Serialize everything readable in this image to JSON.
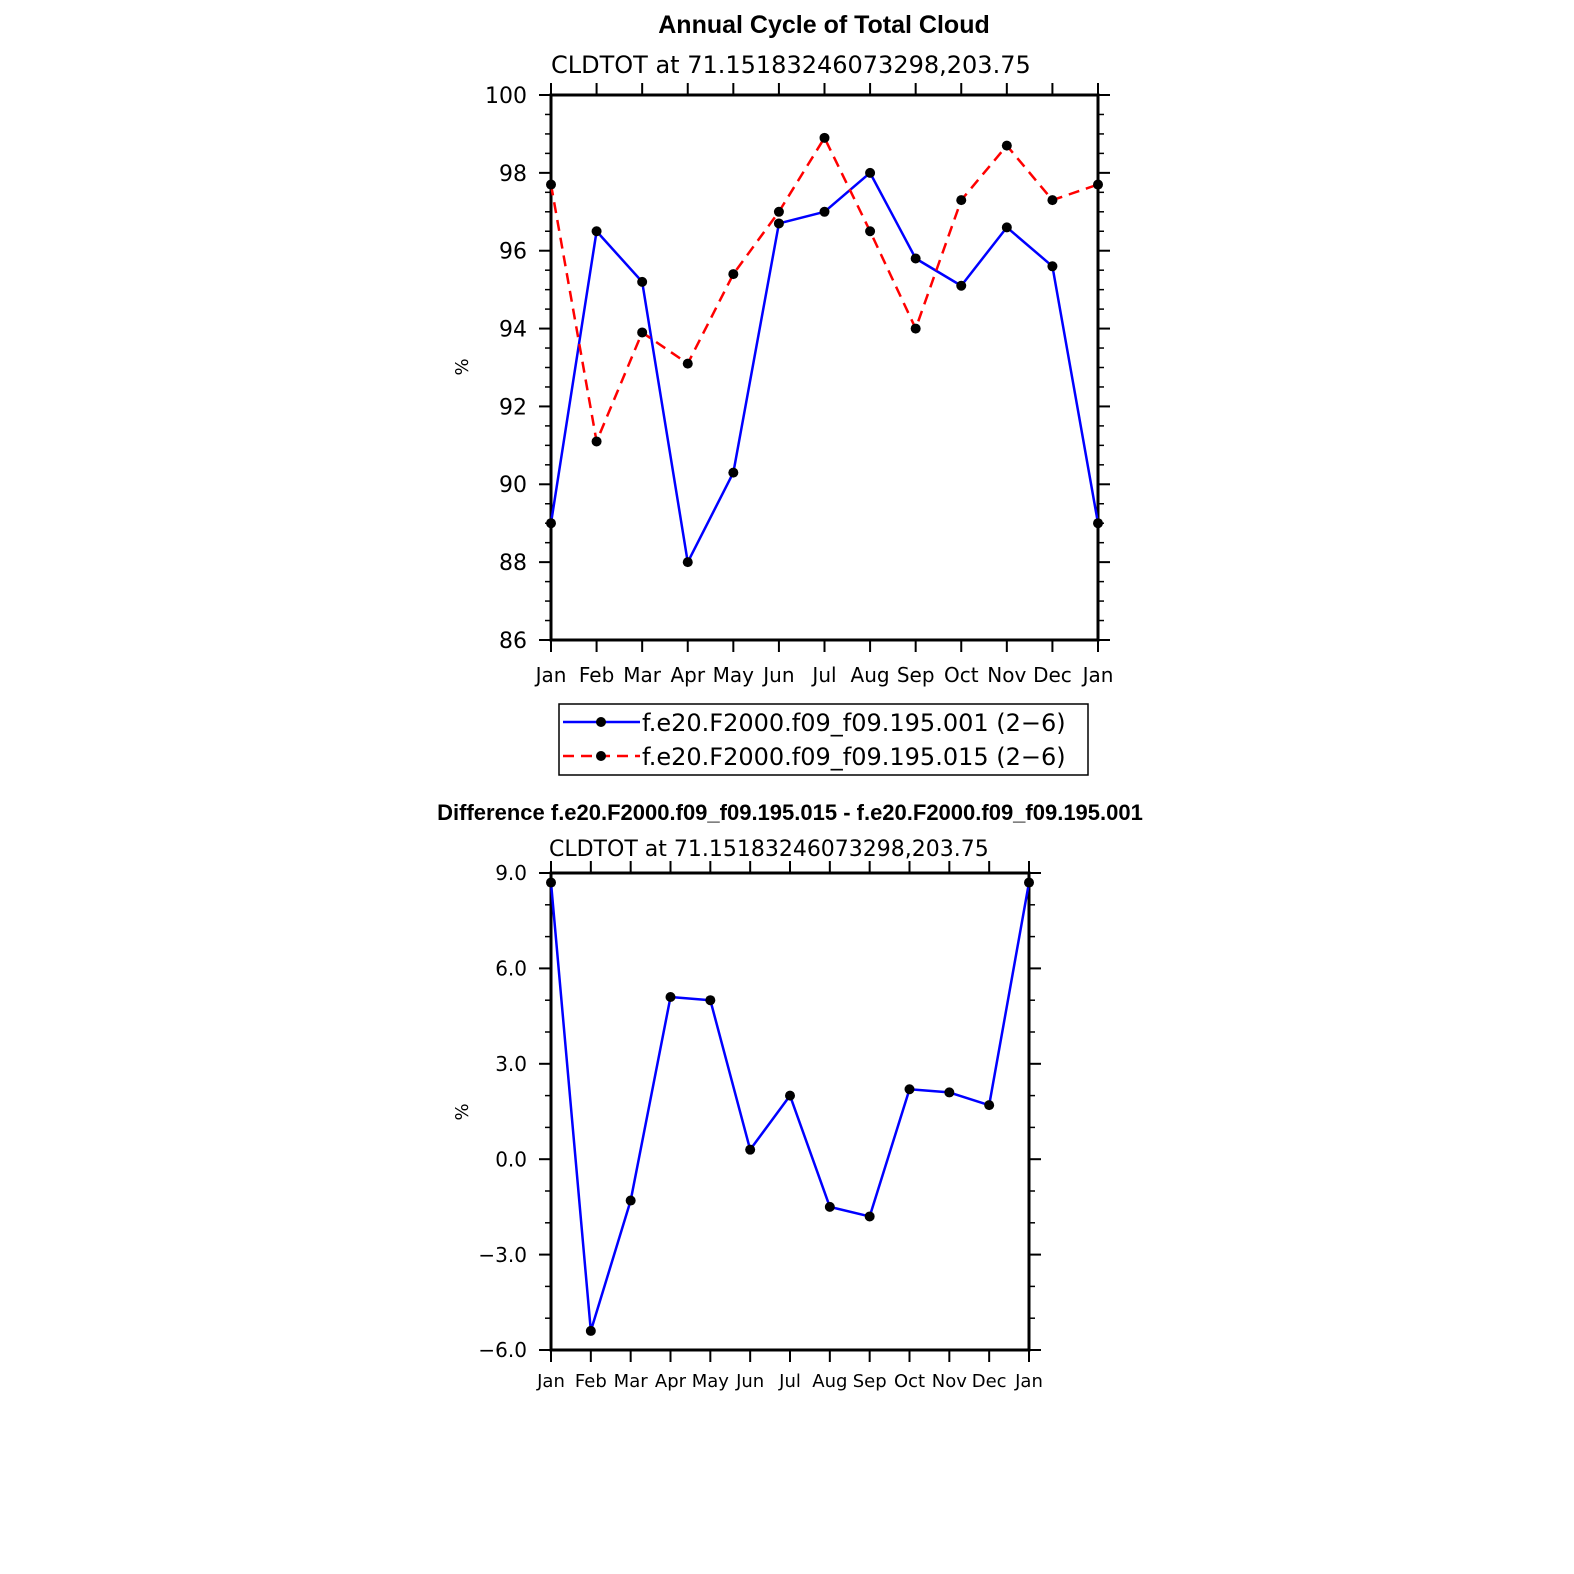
{
  "chart_data": [
    {
      "type": "line",
      "title": "Annual Cycle of Total Cloud",
      "subtitle": "CLDTOT at 71.15183246073298,203.75",
      "xlabel": "",
      "ylabel": "%",
      "categories": [
        "Jan",
        "Feb",
        "Mar",
        "Apr",
        "May",
        "Jun",
        "Jul",
        "Aug",
        "Sep",
        "Oct",
        "Nov",
        "Dec",
        "Jan"
      ],
      "ylim": [
        86,
        100
      ],
      "yticks": [
        "86",
        "88",
        "90",
        "92",
        "94",
        "96",
        "98",
        "100"
      ],
      "legend_position": "bottom",
      "grid": false,
      "series": [
        {
          "name": "f.e20.F2000.f09_f09.195.001 (2−6)",
          "color": "#0000ff",
          "dash": "solid",
          "marker": "filled-circle",
          "values": [
            89.0,
            96.5,
            95.2,
            88.0,
            90.3,
            96.7,
            97.0,
            98.0,
            95.8,
            95.1,
            96.6,
            95.6,
            89.0
          ]
        },
        {
          "name": "f.e20.F2000.f09_f09.195.015 (2−6)",
          "color": "#ff0000",
          "dash": "dashed",
          "marker": "filled-circle",
          "values": [
            97.7,
            91.1,
            93.9,
            93.1,
            95.4,
            97.0,
            98.9,
            96.5,
            94.0,
            97.3,
            98.7,
            97.3,
            97.7
          ]
        }
      ]
    },
    {
      "type": "line",
      "title": "Difference f.e20.F2000.f09_f09.195.015 - f.e20.F2000.f09_f09.195.001",
      "subtitle": "CLDTOT at 71.15183246073298,203.75",
      "xlabel": "",
      "ylabel": "%",
      "categories": [
        "Jan",
        "Feb",
        "Mar",
        "Apr",
        "May",
        "Jun",
        "Jul",
        "Aug",
        "Sep",
        "Oct",
        "Nov",
        "Dec",
        "Jan"
      ],
      "ylim": [
        -6,
        9
      ],
      "yticks": [
        "−6.0",
        "−3.0",
        "0.0",
        "3.0",
        "6.0",
        "9.0"
      ],
      "grid": false,
      "series": [
        {
          "color": "#0000ff",
          "dash": "solid",
          "marker": "filled-circle",
          "values": [
            8.7,
            -5.4,
            -1.3,
            5.1,
            5.0,
            0.3,
            2.0,
            -1.5,
            -1.8,
            2.2,
            2.1,
            1.7,
            8.7
          ]
        }
      ]
    }
  ]
}
